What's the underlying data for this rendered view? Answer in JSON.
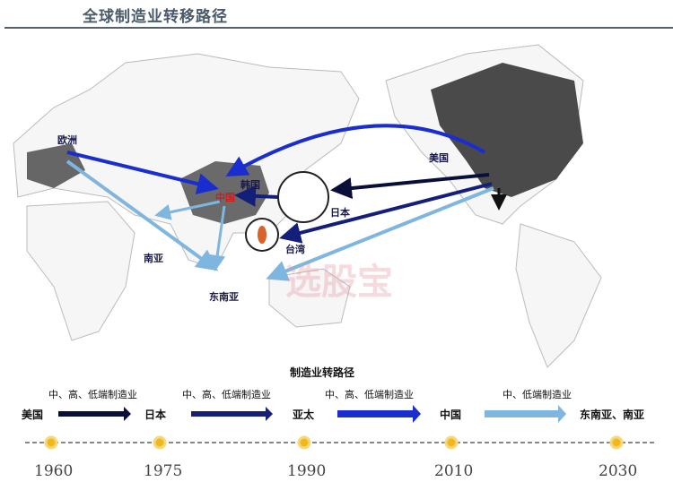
{
  "title": "全球制造业转移路径",
  "map_labels": {
    "europe": "欧洲",
    "china": "中国",
    "korea": "韩国",
    "japan": "日本",
    "taiwan": "台湾",
    "usa": "美国",
    "south_asia": "南亚",
    "southeast_asia": "东南亚"
  },
  "watermark": "选股宝",
  "timeline": {
    "title": "制造业转路径",
    "stages": [
      {
        "from": "美国",
        "label": "中、高、低端制造业",
        "color": "#0a0f3a"
      },
      {
        "from": "日本",
        "label": "中、高、低端制造业",
        "color": "#141f7a"
      },
      {
        "from": "亚太",
        "label": "中、高、低端制造业",
        "color": "#1a2ed0"
      },
      {
        "from": "中国",
        "label": "中、低端制造业",
        "color": "#7fb6df"
      }
    ],
    "end": "东南亚、南亚",
    "years": [
      "1960",
      "1975",
      "1990",
      "2010",
      "2030"
    ]
  },
  "colors": {
    "land": "#f4f4f4",
    "highlight": "#4a4a4a",
    "china": "#6a6a6a",
    "marker": "#f0b820"
  }
}
